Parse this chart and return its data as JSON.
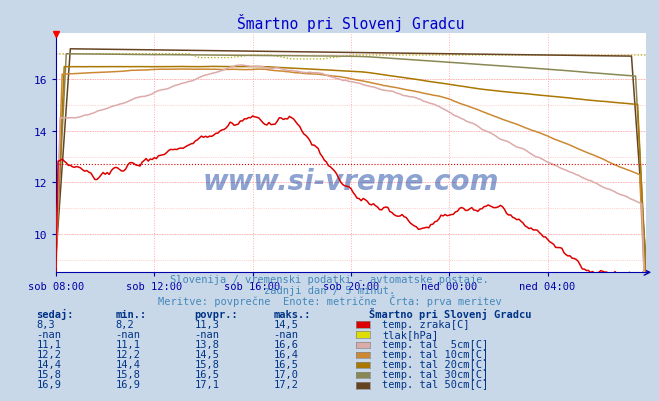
{
  "title": "Šmartno pri Slovenj Gradcu",
  "subtitle1": "Slovenija / vremenski podatki - avtomatske postaje.",
  "subtitle2": "zadnji dan / 5 minut.",
  "subtitle3": "Meritve: povprečne  Enote: metrične  Črta: prva meritev",
  "bg_color": "#c8d8e8",
  "plot_bg_color": "#ffffff",
  "grid_color": "#ffaaaa",
  "title_color": "#0000cc",
  "subtitle_color": "#4488bb",
  "axis_color": "#0000aa",
  "text_color": "#003388",
  "xlabel_color": "#0000aa",
  "x_labels": [
    "sob 08:00",
    "sob 12:00",
    "sob 16:00",
    "sob 20:00",
    "ned 00:00",
    "ned 04:00"
  ],
  "x_ticks_pos": [
    0,
    48,
    96,
    144,
    192,
    240
  ],
  "x_max": 288,
  "ylim": [
    8.5,
    17.8
  ],
  "yticks": [
    10,
    12,
    14,
    16
  ],
  "colors": {
    "temp_zraka": "#dd0000",
    "tlak": "#aaaa00",
    "tal5": "#ddaaaa",
    "tal10": "#cc8833",
    "tal20": "#aa7700",
    "tal30": "#888855",
    "tal50": "#664422"
  },
  "legend_colors": {
    "temp_zraka": "#dd0000",
    "tlak": "#dddd00",
    "tal5": "#ddaaaa",
    "tal10": "#cc8833",
    "tal20": "#aa7700",
    "tal30": "#888855",
    "tal50": "#664422"
  },
  "table_header": [
    "sedaj:",
    "min.:",
    "povpr.:",
    "maks.:"
  ],
  "table_title": "Šmartno pri Slovenj Gradcu",
  "table_rows": [
    [
      "8,3",
      "8,2",
      "11,3",
      "14,5",
      "temp. zraka[C]"
    ],
    [
      "-nan",
      "-nan",
      "-nan",
      "-nan",
      "tlak[hPa]"
    ],
    [
      "11,1",
      "11,1",
      "13,8",
      "16,6",
      "temp. tal  5cm[C]"
    ],
    [
      "12,2",
      "12,2",
      "14,5",
      "16,4",
      "temp. tal 10cm[C]"
    ],
    [
      "14,4",
      "14,4",
      "15,8",
      "16,5",
      "temp. tal 20cm[C]"
    ],
    [
      "15,8",
      "15,8",
      "16,5",
      "17,0",
      "temp. tal 30cm[C]"
    ],
    [
      "16,9",
      "16,9",
      "17,1",
      "17,2",
      "temp. tal 50cm[C]"
    ]
  ],
  "table_row_colors": [
    "#dd0000",
    "#dddd00",
    "#ddaaaa",
    "#cc8833",
    "#aa7700",
    "#888855",
    "#664422"
  ]
}
